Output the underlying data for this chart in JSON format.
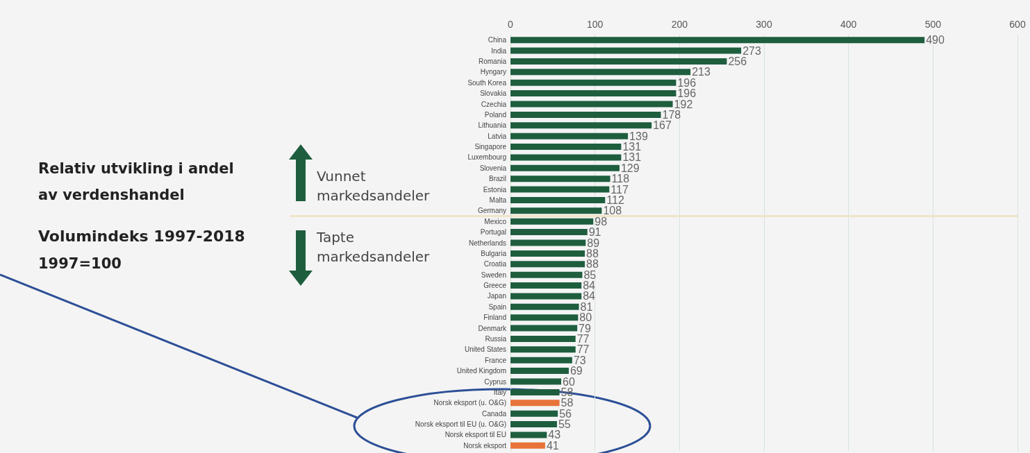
{
  "chart_data": {
    "type": "bar",
    "orientation": "horizontal",
    "title": "Relativ utvikling i andel av verdenshandel",
    "subtitle": "Volumindeks 1997-2018",
    "annotations": [
      "1997=100",
      "Vunnet markedsandeler",
      "Tapte markedsandeler"
    ],
    "categories": [
      "China",
      "India",
      "Romania",
      "Hyngary",
      "South Korea",
      "Slovakia",
      "Czechia",
      "Poland",
      "Lithuania",
      "Latvia",
      "Singapore",
      "Luxembourg",
      "Slovenia",
      "Brazil",
      "Estonia",
      "Malta",
      "Germany",
      "Mexico",
      "Portugal",
      "Netherlands",
      "Bulgaria",
      "Croatia",
      "Sweden",
      "Greece",
      "Japan",
      "Spain",
      "Finland",
      "Denmark",
      "Russia",
      "United States",
      "France",
      "United Kingdom",
      "Cyprus",
      "Italy",
      "Norsk eksport (u. O&G)",
      "Canada",
      "Norsk eksport til EU (u. O&G)",
      "Norsk eksport til EU",
      "Norsk eksport"
    ],
    "values": [
      490,
      273,
      256,
      213,
      196,
      196,
      192,
      178,
      167,
      139,
      131,
      131,
      129,
      118,
      117,
      112,
      108,
      98,
      91,
      89,
      88,
      88,
      85,
      84,
      84,
      81,
      80,
      79,
      77,
      77,
      73,
      69,
      60,
      58,
      58,
      56,
      55,
      43,
      41
    ],
    "colors": [
      "#1e5e3f",
      "#1e5e3f",
      "#1e5e3f",
      "#1e5e3f",
      "#1e5e3f",
      "#1e5e3f",
      "#1e5e3f",
      "#1e5e3f",
      "#1e5e3f",
      "#1e5e3f",
      "#1e5e3f",
      "#1e5e3f",
      "#1e5e3f",
      "#1e5e3f",
      "#1e5e3f",
      "#1e5e3f",
      "#1e5e3f",
      "#1e5e3f",
      "#1e5e3f",
      "#1e5e3f",
      "#1e5e3f",
      "#1e5e3f",
      "#1e5e3f",
      "#1e5e3f",
      "#1e5e3f",
      "#1e5e3f",
      "#1e5e3f",
      "#1e5e3f",
      "#1e5e3f",
      "#1e5e3f",
      "#1e5e3f",
      "#1e5e3f",
      "#1e5e3f",
      "#1e5e3f",
      "#e8733a",
      "#1e5e3f",
      "#1e5e3f",
      "#1e5e3f",
      "#e8733a"
    ],
    "xlim": [
      0,
      600
    ],
    "xticks": [
      0,
      100,
      200,
      300,
      400,
      500,
      600
    ],
    "ref_lines": [
      {
        "axis": "y",
        "value": "Germany",
        "color": "#efe4c8"
      }
    ],
    "data_labels": true,
    "grid": "x"
  }
}
